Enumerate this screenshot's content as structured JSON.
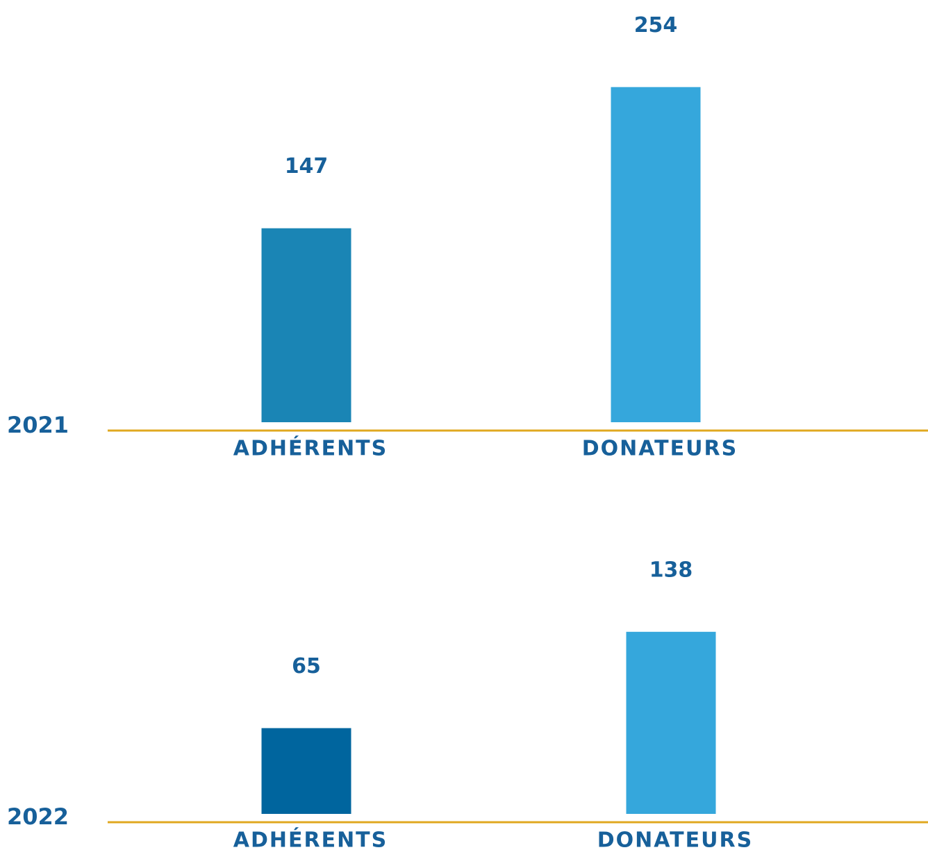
{
  "chart_data": [
    {
      "type": "bar",
      "title": "2021",
      "categories": [
        "ADHÉRENTS",
        "DONATEURS"
      ],
      "values": [
        147,
        254
      ],
      "colors": [
        "#1a85b5",
        "#35a7dc"
      ]
    },
    {
      "type": "bar",
      "title": "2022",
      "categories": [
        "ADHÉRENTS",
        "DONATEURS"
      ],
      "values": [
        65,
        138
      ],
      "colors": [
        "#00659e",
        "#35a7dc"
      ]
    }
  ]
}
